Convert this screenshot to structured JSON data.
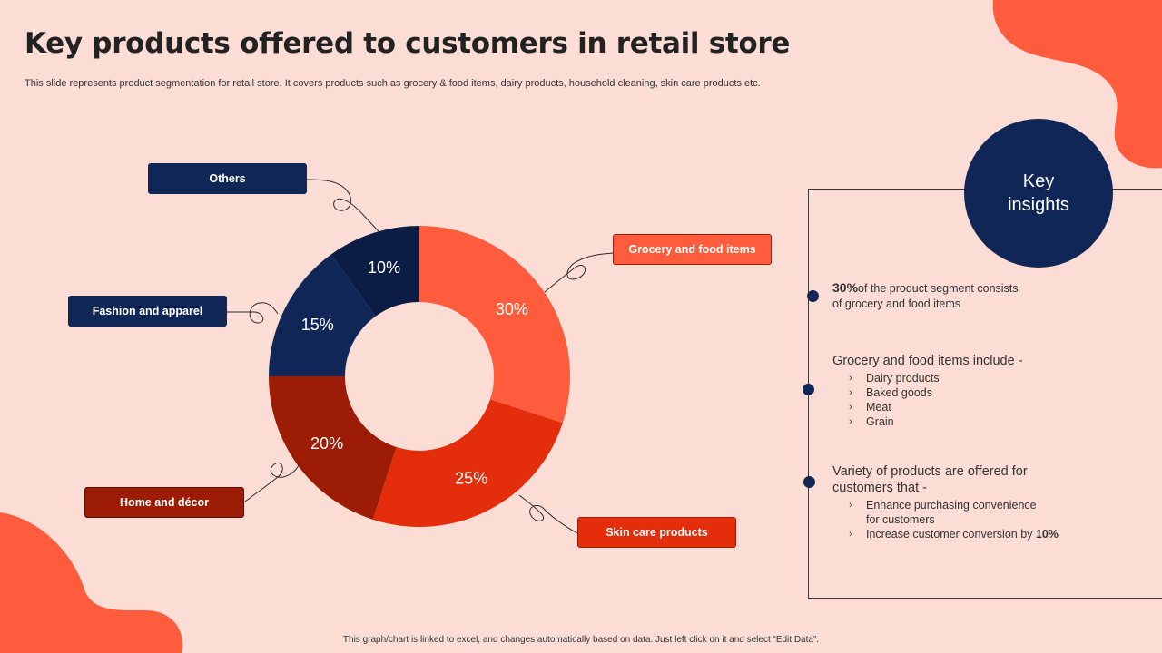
{
  "title": "Key products offered to customers in retail store",
  "subtitle": "This slide represents product segmentation for retail store. It covers products such as grocery & food items, dairy products, household cleaning, skin care products etc.",
  "chart_data": {
    "type": "pie",
    "variant": "donut",
    "categories": [
      "Grocery and food items",
      "Skin care products",
      "Home and décor",
      "Fashion and apparel",
      "Others"
    ],
    "values": [
      30,
      25,
      20,
      15,
      10
    ],
    "value_labels": [
      "30%",
      "25%",
      "20%",
      "15%",
      "10%"
    ],
    "colors": [
      "#FE5C3C",
      "#E42D0B",
      "#9C1C06",
      "#0F2656",
      "#0B1D45"
    ],
    "legend": "callout labels around donut"
  },
  "insights": {
    "heading": "Key insights",
    "point1": {
      "bold": "30%",
      "text_line1": "of the product  segment consists",
      "text_line2": "of grocery  and food  items"
    },
    "point2": {
      "heading": "Grocery and food items include -",
      "items": [
        "Dairy products",
        "Baked goods",
        "Meat",
        "Grain"
      ]
    },
    "point3": {
      "heading_line1": "Variety of products are offered for",
      "heading_line2": "customers that -",
      "item1_line1": "Enhance purchasing convenience",
      "item1_line2": "for customers",
      "item2_text": "Increase customer conversion  by ",
      "item2_bold": "10%"
    },
    "bullet_glyph": "›"
  },
  "footer": "This graph/chart is linked to excel, and changes automatically based on data. Just left click on it and select “Edit Data”.",
  "colors": {
    "background": "#FCDDD6",
    "accent": "#FE5C3C",
    "navy": "#0F2656"
  }
}
